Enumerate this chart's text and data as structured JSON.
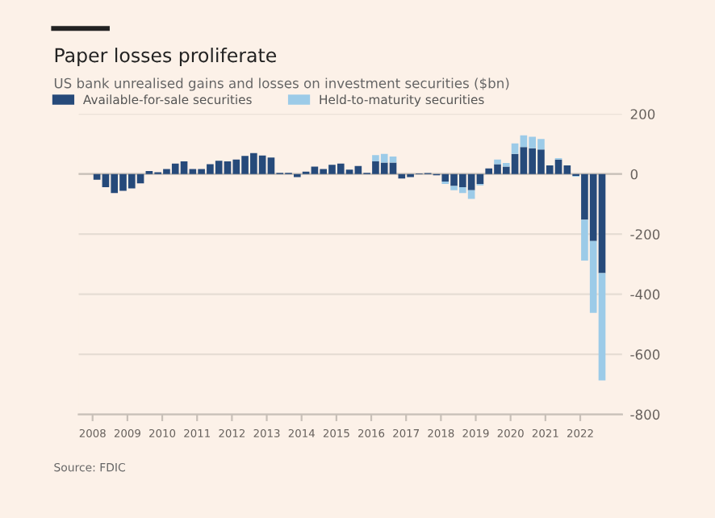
{
  "chart_data": {
    "type": "bar",
    "stacked": true,
    "title": "Paper losses proliferate",
    "subtitle": "US bank unrealised gains and losses on investment securities ($bn)",
    "annotations": [
      "Source: FDIC"
    ],
    "x": [
      2008.125,
      2008.375,
      2008.625,
      2008.875,
      2009.125,
      2009.375,
      2009.625,
      2009.875,
      2010.125,
      2010.375,
      2010.625,
      2010.875,
      2011.125,
      2011.375,
      2011.625,
      2011.875,
      2012.125,
      2012.375,
      2012.625,
      2012.875,
      2013.125,
      2013.375,
      2013.625,
      2013.875,
      2014.125,
      2014.375,
      2014.625,
      2014.875,
      2015.125,
      2015.375,
      2015.625,
      2015.875,
      2016.125,
      2016.375,
      2016.625,
      2016.875,
      2017.125,
      2017.375,
      2017.625,
      2017.875,
      2018.125,
      2018.375,
      2018.625,
      2018.875,
      2019.125,
      2019.375,
      2019.625,
      2019.875,
      2020.125,
      2020.375,
      2020.625,
      2020.875,
      2021.125,
      2021.375,
      2021.625,
      2021.875,
      2022.125,
      2022.375,
      2022.625
    ],
    "series": [
      {
        "name": "Available-for-sale securities",
        "color": "#264a7a",
        "values": [
          -19,
          -44,
          -63,
          -56,
          -48,
          -31,
          10,
          6,
          17,
          35,
          42,
          17,
          17,
          33,
          44,
          42,
          48,
          60,
          70,
          62,
          55,
          4,
          4,
          -10,
          8,
          25,
          17,
          31,
          35,
          15,
          27,
          4,
          42,
          38,
          38,
          -15,
          -10,
          2,
          3,
          -4,
          -25,
          -40,
          -44,
          -54,
          -33,
          19,
          33,
          25,
          67,
          90,
          86,
          82,
          29,
          48,
          29,
          -6,
          -152,
          -223,
          -330
        ]
      },
      {
        "name": "Held-to-maturity securities",
        "color": "#9ccbe8",
        "values": [
          0,
          0,
          0,
          0,
          0,
          0,
          0,
          0,
          0,
          0,
          0,
          0,
          0,
          0,
          0,
          0,
          0,
          0,
          0,
          0,
          0,
          0,
          0,
          0,
          0,
          0,
          0,
          0,
          0,
          0,
          0,
          0,
          21,
          29,
          20,
          0,
          0,
          0,
          0,
          0,
          -8,
          -14,
          -19,
          -29,
          -5,
          0,
          15,
          12,
          35,
          39,
          38,
          35,
          0,
          5,
          0,
          -3,
          -136,
          -239,
          -357
        ]
      }
    ],
    "xlim": [
      2007.6,
      2023.2
    ],
    "xticks": [
      2008,
      2009,
      2010,
      2011,
      2012,
      2013,
      2014,
      2015,
      2016,
      2017,
      2018,
      2019,
      2020,
      2021,
      2022
    ],
    "ylim": [
      -800,
      200
    ],
    "yticks": [
      200,
      0,
      -200,
      -400,
      -600,
      -800
    ],
    "grid": "y",
    "legend": "top left"
  }
}
